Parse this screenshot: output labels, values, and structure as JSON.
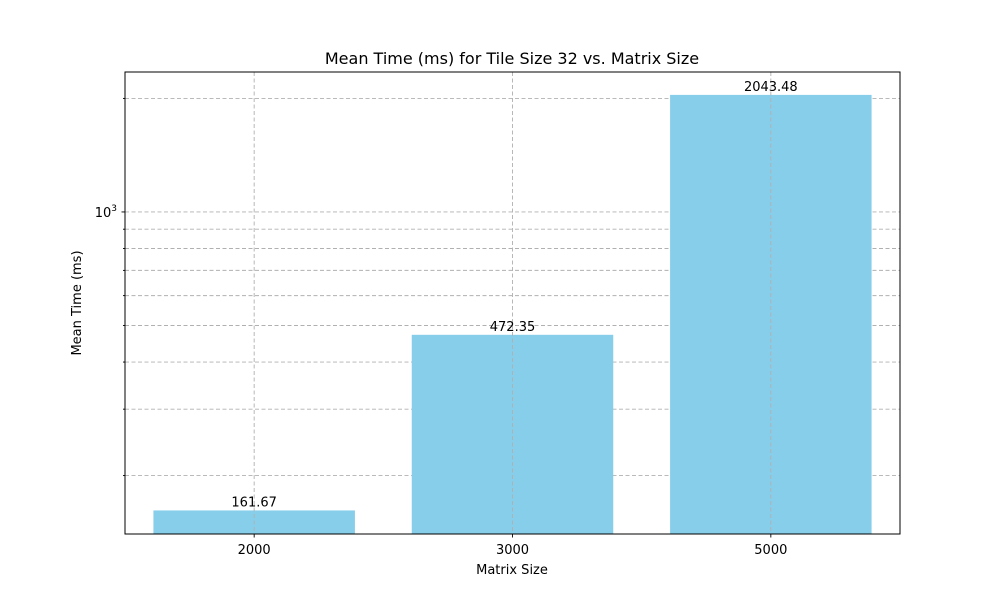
{
  "chart_data": {
    "type": "bar",
    "title": "Mean Time (ms) for Tile Size 32 vs. Matrix Size",
    "xlabel": "Matrix Size",
    "ylabel": "Mean Time (ms)",
    "categories": [
      "2000",
      "3000",
      "5000"
    ],
    "values": [
      161.67,
      472.35,
      2043.48
    ],
    "data_labels": [
      "161.67",
      "472.35",
      "2043.48"
    ],
    "yscale": "log",
    "ylim": [
      140,
      2350
    ],
    "y_major_ticks": [
      {
        "value": 1000,
        "base": "10",
        "exponent": "3"
      }
    ],
    "y_minor_ticks": [
      200,
      300,
      400,
      500,
      600,
      700,
      800,
      900,
      2000
    ],
    "grid": true,
    "bar_color": "#87ceeb",
    "grid_color": "#b0b0b0"
  }
}
